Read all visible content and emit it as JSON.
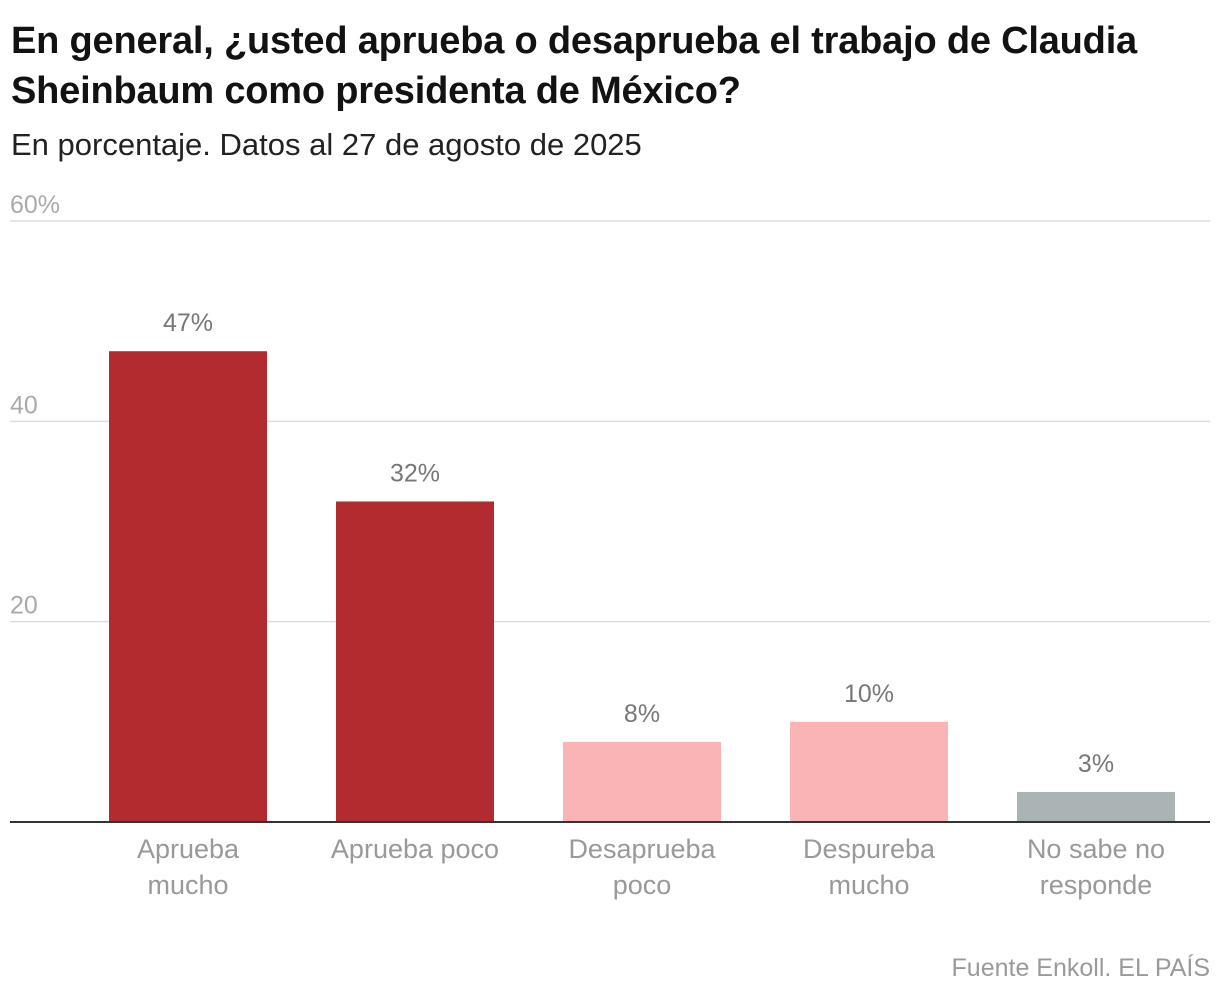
{
  "header": {
    "title": "En general, ¿usted aprueba o desaprueba el trabajo de Claudia Sheinbaum como presidenta de México?",
    "subtitle": "En porcentaje. Datos al 27 de agosto de 2025"
  },
  "footer": {
    "source": "Fuente Enkoll. EL PAÍS"
  },
  "colors": {
    "approve": "#b22b2f",
    "disapprove": "#fbb4b5",
    "no_answer": "#abb4b5",
    "gridline": "#dddddd",
    "axis": "#333333",
    "tick_label": "#aaaaaa",
    "value_label": "#777777",
    "category_label": "#999999"
  },
  "chart_data": {
    "type": "bar",
    "title": "En general, ¿usted aprueba o desaprueba el trabajo de Claudia Sheinbaum como presidenta de México?",
    "subtitle": "En porcentaje. Datos al 27 de agosto de 2025",
    "xlabel": "",
    "ylabel": "",
    "ylim": [
      0,
      60
    ],
    "grid": true,
    "yticks": [
      {
        "value": 20,
        "label": "20"
      },
      {
        "value": 40,
        "label": "40"
      },
      {
        "value": 60,
        "label": "60%"
      }
    ],
    "categories": [
      [
        "Aprueba",
        "mucho"
      ],
      [
        "Aprueba poco"
      ],
      [
        "Desaprueba",
        "poco"
      ],
      [
        "Despureba",
        "mucho"
      ],
      [
        "No sabe no",
        "responde"
      ]
    ],
    "values": [
      47,
      32,
      8,
      10,
      3
    ],
    "value_labels": [
      "47%",
      "32%",
      "8%",
      "10%",
      "3%"
    ],
    "bar_color_keys": [
      "approve",
      "approve",
      "disapprove",
      "disapprove",
      "no_answer"
    ]
  }
}
